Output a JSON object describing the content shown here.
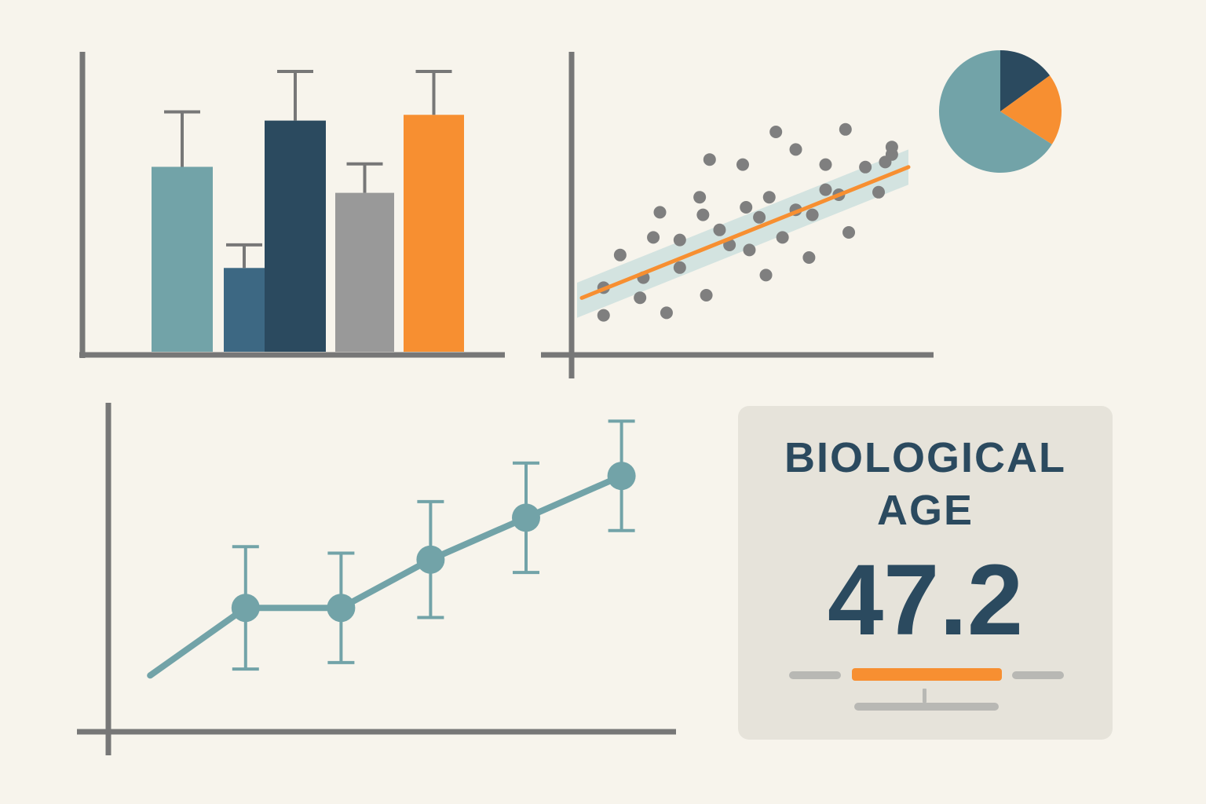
{
  "colors": {
    "background": "#f7f4ec",
    "axis": "#777777",
    "teal": "#72a3a8",
    "steel_blue": "#3d6883",
    "navy": "#2b4a5f",
    "gray": "#999999",
    "orange": "#f78f31",
    "band": "#d3e3e0",
    "dot": "#7f7f7f",
    "card": "#e6e3da",
    "scale_gray": "#b8b8b4"
  },
  "chart_data": [
    {
      "type": "bar",
      "grid": false,
      "ylim": [
        0,
        100
      ],
      "values": [
        64,
        29,
        80,
        55,
        82
      ],
      "error": [
        19,
        8,
        17,
        10,
        15
      ],
      "colors": [
        "#72a3a8",
        "#3d6883",
        "#2b4a5f",
        "#999999",
        "#f78f31"
      ]
    },
    {
      "type": "scatter",
      "grid": false,
      "xlim": [
        0,
        100
      ],
      "ylim": [
        0,
        100
      ],
      "points": [
        [
          8,
          12
        ],
        [
          8,
          23
        ],
        [
          13,
          36
        ],
        [
          19,
          19
        ],
        [
          20,
          27
        ],
        [
          23,
          43
        ],
        [
          25,
          53
        ],
        [
          27,
          13
        ],
        [
          31,
          42
        ],
        [
          31,
          31
        ],
        [
          37,
          59
        ],
        [
          38,
          52
        ],
        [
          39,
          20
        ],
        [
          40,
          74
        ],
        [
          43,
          46
        ],
        [
          46,
          40
        ],
        [
          50,
          72
        ],
        [
          51,
          55
        ],
        [
          52,
          38
        ],
        [
          55,
          51
        ],
        [
          57,
          28
        ],
        [
          58,
          59
        ],
        [
          60,
          85
        ],
        [
          62,
          43
        ],
        [
          66,
          78
        ],
        [
          66,
          54
        ],
        [
          70,
          35
        ],
        [
          71,
          52
        ],
        [
          75,
          62
        ],
        [
          75,
          72
        ],
        [
          79,
          60
        ],
        [
          81,
          86
        ],
        [
          82,
          45
        ],
        [
          87,
          71
        ],
        [
          91,
          61
        ],
        [
          93,
          73
        ],
        [
          95,
          76
        ],
        [
          95,
          79
        ]
      ],
      "trend": {
        "from": [
          0,
          18
        ],
        "to": [
          100,
          71
        ]
      },
      "band_half_width": 7
    },
    {
      "type": "pie",
      "slices": [
        {
          "value": 15,
          "color": "#2b4a5f"
        },
        {
          "value": 19,
          "color": "#f78f31"
        },
        {
          "value": 66,
          "color": "#72a3a8"
        }
      ]
    },
    {
      "type": "line",
      "grid": false,
      "xlim": [
        0,
        100
      ],
      "ylim": [
        0,
        100
      ],
      "x": [
        12,
        28,
        44,
        59,
        75,
        91
      ],
      "y": [
        17,
        38,
        38,
        53,
        66,
        79
      ],
      "error": [
        null,
        19,
        17,
        18,
        17,
        17
      ]
    }
  ],
  "card": {
    "title_line1": "BIOLOGICAL",
    "title_line2": "AGE",
    "value": "47.2"
  }
}
